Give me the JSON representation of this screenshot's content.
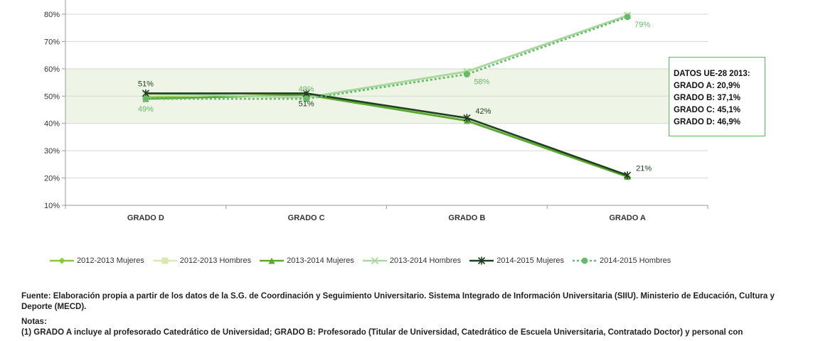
{
  "chart_data": {
    "type": "line",
    "categories": [
      "GRADO D",
      "GRADO C",
      "GRADO B",
      "GRADO A"
    ],
    "yticks": [
      "10%",
      "20%",
      "30%",
      "40%",
      "50%",
      "60%",
      "70%",
      "80%"
    ],
    "ylim": [
      10,
      80
    ],
    "shaded_band": [
      40,
      60
    ],
    "grid": true,
    "legend_position": "bottom",
    "series": [
      {
        "name": "2012-2013 Mujeres",
        "values": [
          49.5,
          50.5,
          41,
          20.5
        ],
        "color": "#8cc63f",
        "marker": "diamond",
        "dashed": false
      },
      {
        "name": "2012-2013 Hombres",
        "values": [
          50.5,
          49.5,
          59,
          79.5
        ],
        "color": "#d9e8b0",
        "marker": "square",
        "dashed": false
      },
      {
        "name": "2013-2014 Mujeres",
        "values": [
          49,
          50.5,
          41,
          20.5
        ],
        "color": "#5aa832",
        "marker": "triangle",
        "dashed": false
      },
      {
        "name": "2013-2014 Hombres",
        "values": [
          51,
          49.5,
          59,
          79.5
        ],
        "color": "#a8d8a0",
        "marker": "x",
        "dashed": false
      },
      {
        "name": "2014-2015 Mujeres",
        "values": [
          51,
          51,
          42,
          21
        ],
        "color": "#1e4020",
        "marker": "star",
        "dashed": false
      },
      {
        "name": "2014-2015 Hombres",
        "values": [
          49,
          49,
          58,
          79
        ],
        "color": "#66bb6a",
        "marker": "circle",
        "dashed": true
      }
    ],
    "data_labels": [
      {
        "text": "51%",
        "x": 0,
        "y": 51,
        "color": "#1e4020",
        "pos": "above"
      },
      {
        "text": "49%",
        "x": 0,
        "y": 49,
        "color": "#66bb6a",
        "pos": "below"
      },
      {
        "text": "49%",
        "x": 1,
        "y": 49,
        "color": "#66bb6a",
        "pos": "above"
      },
      {
        "text": "51%",
        "x": 1,
        "y": 51,
        "color": "#1e4020",
        "pos": "below"
      },
      {
        "text": "58%",
        "x": 2,
        "y": 58,
        "color": "#66bb6a",
        "pos": "belowright"
      },
      {
        "text": "42%",
        "x": 2,
        "y": 42,
        "color": "#1e4020",
        "pos": "aboveright"
      },
      {
        "text": "79%",
        "x": 3,
        "y": 79,
        "color": "#66bb6a",
        "pos": "belowright"
      },
      {
        "text": "21%",
        "x": 3,
        "y": 21,
        "color": "#1e4020",
        "pos": "aboveright"
      }
    ]
  },
  "infobox": {
    "lines": [
      "DATOS UE-28 2013:",
      "GRADO A: 20,9%",
      "GRADO B: 37,1%",
      "GRADO C: 45,1%",
      "GRADO D: 46,9%"
    ]
  },
  "notes": {
    "source": "Fuente: Elaboración propia a partir de los datos  de la S.G. de Coordinación y Seguimiento Universitario. Sistema Integrado de Información Universitaria (SIIU). Ministerio de Educación, Cultura y Deporte (MECD).",
    "notes_title": "Notas:",
    "note1": "(1) GRADO A incluye al profesorado Catedrático de Universidad; GRADO B: Profesorado (Titular de Universidad, Catedrático de Escuela Universitaria, Contratado Doctor) y personal con"
  }
}
